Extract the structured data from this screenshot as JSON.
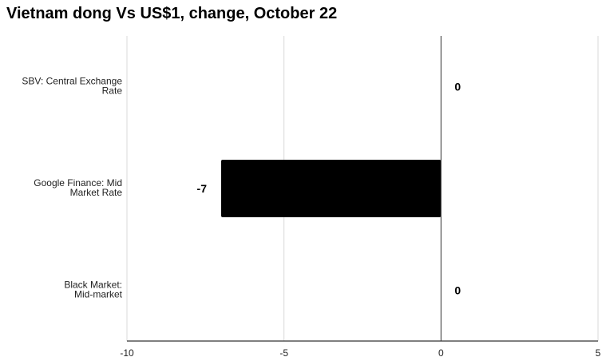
{
  "chart_data": {
    "type": "bar",
    "orientation": "horizontal",
    "title": "Vietnam dong Vs US$1, change, October 22",
    "categories": [
      [
        "SBV: Central Exchange",
        "Rate"
      ],
      [
        "Google Finance: Mid",
        "Market Rate"
      ],
      [
        "Black Market:",
        "Mid-market"
      ]
    ],
    "values": [
      0,
      -7,
      0
    ],
    "data_labels": [
      "0",
      "-7",
      "0"
    ],
    "xlim": [
      -10,
      5
    ],
    "xticks": [
      -10,
      -5,
      0,
      5
    ],
    "xtick_labels": [
      "-10",
      "-5",
      "0",
      "5"
    ],
    "grid": true,
    "bar_color": "#000000",
    "gridline_color": "#d9d9d9",
    "xlabel": "",
    "ylabel": ""
  }
}
